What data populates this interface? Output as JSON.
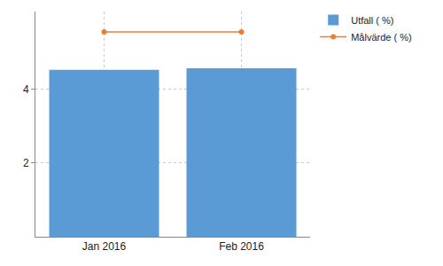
{
  "chart_data": {
    "type": "bar",
    "categories": [
      "Jan 2016",
      "Feb 2016"
    ],
    "series": [
      {
        "name": "Utfall ( %)",
        "type": "bar",
        "color": "#5b9bd5",
        "values": [
          4.52,
          4.56
        ]
      },
      {
        "name": "Målvärde ( %)",
        "type": "line",
        "color": "#ed7d31",
        "marker": "circle",
        "values": [
          5.55,
          5.55
        ]
      }
    ],
    "ylim": [
      0,
      6.1
    ],
    "yticks": [
      2,
      4
    ],
    "grid": true,
    "legend": "right"
  }
}
